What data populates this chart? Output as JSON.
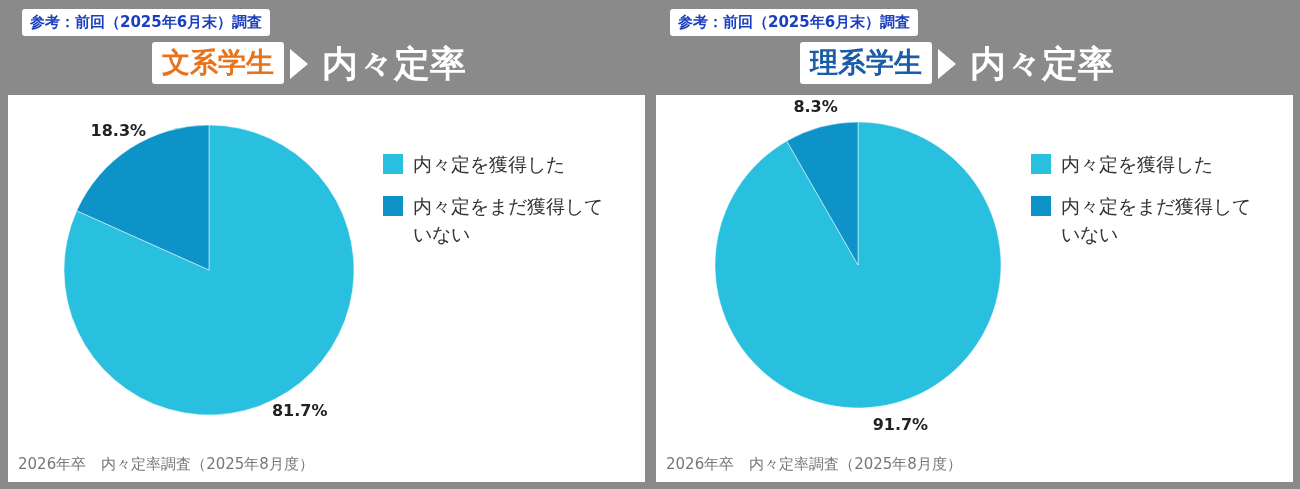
{
  "chart_data": [
    {
      "type": "pie",
      "title": "文系学生",
      "subtitle": "内々定率",
      "categories": [
        "内々定を獲得した",
        "内々定をまだ獲得していない"
      ],
      "values": [
        81.7,
        18.3
      ],
      "value_labels": [
        "81.7%",
        "18.3%"
      ],
      "colors": [
        "#29c0e0",
        "#0e93c8"
      ],
      "legend": "right",
      "annotations": [
        "参考：前回（2025年6月末）調査",
        "2026年卒　内々定率調査（2025年8月度）"
      ]
    },
    {
      "type": "pie",
      "title": "理系学生",
      "subtitle": "内々定率",
      "categories": [
        "内々定を獲得した",
        "内々定をまだ獲得していない"
      ],
      "values": [
        91.7,
        8.3
      ],
      "value_labels": [
        "91.7%",
        "8.3%"
      ],
      "colors": [
        "#29c0e0",
        "#0e93c8"
      ],
      "legend": "right",
      "annotations": [
        "参考：前回（2025年6月末）調査",
        "2026年卒　内々定率調査（2025年8月度）"
      ]
    }
  ]
}
